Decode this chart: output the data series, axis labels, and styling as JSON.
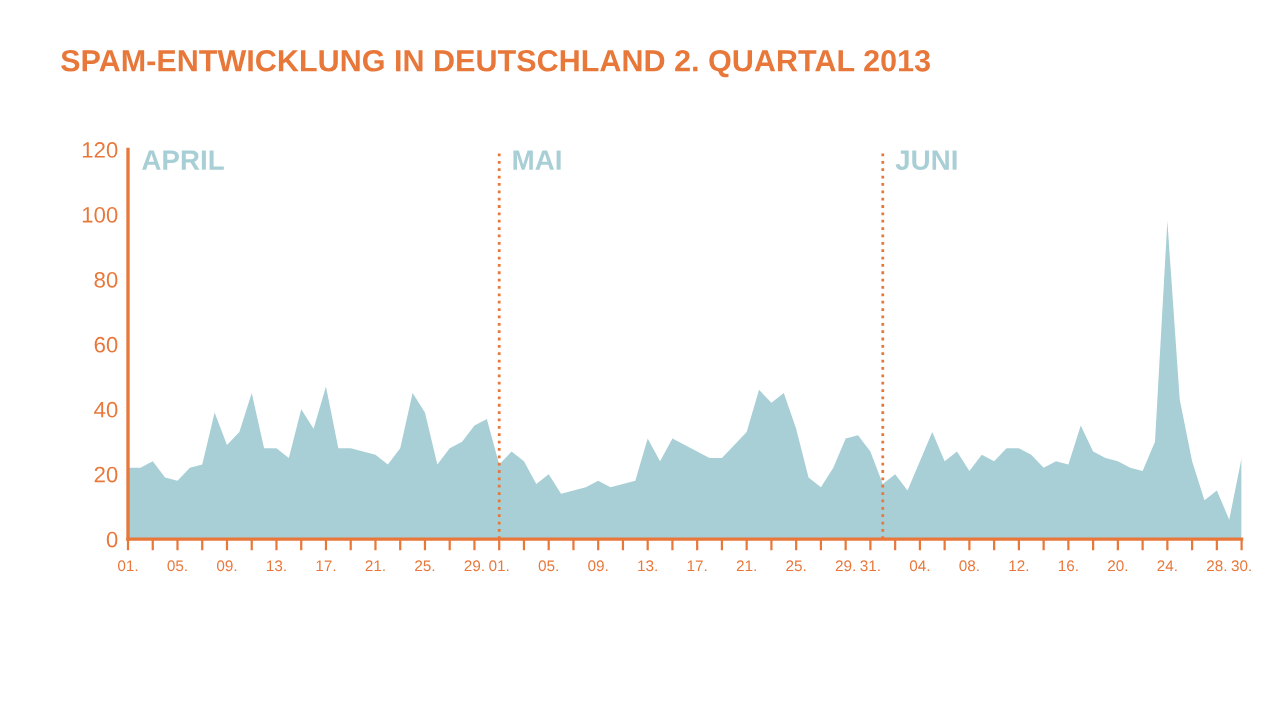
{
  "chart_data": {
    "type": "area",
    "title": "SPAM-ENTWICKLUNG IN DEUTSCHLAND 2. QUARTAL 2013",
    "x": [
      "2013-04-01",
      "2013-04-02",
      "2013-04-03",
      "2013-04-04",
      "2013-04-05",
      "2013-04-06",
      "2013-04-07",
      "2013-04-08",
      "2013-04-09",
      "2013-04-10",
      "2013-04-11",
      "2013-04-12",
      "2013-04-13",
      "2013-04-14",
      "2013-04-15",
      "2013-04-16",
      "2013-04-17",
      "2013-04-18",
      "2013-04-19",
      "2013-04-20",
      "2013-04-21",
      "2013-04-22",
      "2013-04-23",
      "2013-04-24",
      "2013-04-25",
      "2013-04-26",
      "2013-04-27",
      "2013-04-28",
      "2013-04-29",
      "2013-04-30",
      "2013-05-01",
      "2013-05-02",
      "2013-05-03",
      "2013-05-04",
      "2013-05-05",
      "2013-05-06",
      "2013-05-07",
      "2013-05-08",
      "2013-05-09",
      "2013-05-10",
      "2013-05-11",
      "2013-05-12",
      "2013-05-13",
      "2013-05-14",
      "2013-05-15",
      "2013-05-16",
      "2013-05-17",
      "2013-05-18",
      "2013-05-19",
      "2013-05-20",
      "2013-05-21",
      "2013-05-22",
      "2013-05-23",
      "2013-05-24",
      "2013-05-25",
      "2013-05-26",
      "2013-05-27",
      "2013-05-28",
      "2013-05-29",
      "2013-05-30",
      "2013-05-31",
      "2013-06-01",
      "2013-06-02",
      "2013-06-03",
      "2013-06-04",
      "2013-06-05",
      "2013-06-06",
      "2013-06-07",
      "2013-06-08",
      "2013-06-09",
      "2013-06-10",
      "2013-06-11",
      "2013-06-12",
      "2013-06-13",
      "2013-06-14",
      "2013-06-15",
      "2013-06-16",
      "2013-06-17",
      "2013-06-18",
      "2013-06-19",
      "2013-06-20",
      "2013-06-21",
      "2013-06-22",
      "2013-06-23",
      "2013-06-24",
      "2013-06-25",
      "2013-06-26",
      "2013-06-27",
      "2013-06-28",
      "2013-06-29",
      "2013-06-30"
    ],
    "series": [
      {
        "color": "#a9cfd6",
        "values": [
          22,
          22,
          24,
          19,
          18,
          22,
          23,
          39,
          29,
          33,
          45,
          28,
          28,
          25,
          40,
          34,
          47,
          28,
          28,
          27,
          26,
          23,
          28,
          45,
          39,
          23,
          28,
          30,
          35,
          37,
          23,
          27,
          24,
          17,
          20,
          14,
          15,
          16,
          18,
          16,
          17,
          18,
          31,
          24,
          31,
          29,
          27,
          25,
          25,
          29,
          33,
          46,
          42,
          45,
          34,
          19,
          16,
          22,
          31,
          32,
          27,
          17,
          20,
          15,
          24,
          33,
          24,
          27,
          21,
          26,
          24,
          28,
          28,
          26,
          22,
          24,
          23,
          35,
          27,
          25,
          24,
          22,
          21,
          30,
          98,
          43,
          24,
          12,
          15,
          6,
          25
        ]
      }
    ],
    "ylim": [
      0,
      120
    ],
    "yticks": [
      0,
      20,
      40,
      60,
      80,
      100,
      120
    ],
    "xlim": [
      "2013-04-01",
      "2013-06-30"
    ],
    "xticks": [
      {
        "value": "2013-04-01",
        "label": "01."
      },
      {
        "value": "2013-04-03",
        "label": null
      },
      {
        "value": "2013-04-05",
        "label": "05."
      },
      {
        "value": "2013-04-07",
        "label": null
      },
      {
        "value": "2013-04-09",
        "label": "09."
      },
      {
        "value": "2013-04-11",
        "label": null
      },
      {
        "value": "2013-04-13",
        "label": "13."
      },
      {
        "value": "2013-04-15",
        "label": null
      },
      {
        "value": "2013-04-17",
        "label": "17."
      },
      {
        "value": "2013-04-19",
        "label": null
      },
      {
        "value": "2013-04-21",
        "label": "21."
      },
      {
        "value": "2013-04-23",
        "label": null
      },
      {
        "value": "2013-04-25",
        "label": "25."
      },
      {
        "value": "2013-04-27",
        "label": null
      },
      {
        "value": "2013-04-29",
        "label": "29."
      },
      {
        "value": "2013-05-01",
        "label": "01."
      },
      {
        "value": "2013-05-03",
        "label": null
      },
      {
        "value": "2013-05-05",
        "label": "05."
      },
      {
        "value": "2013-05-07",
        "label": null
      },
      {
        "value": "2013-05-09",
        "label": "09."
      },
      {
        "value": "2013-05-11",
        "label": null
      },
      {
        "value": "2013-05-13",
        "label": "13."
      },
      {
        "value": "2013-05-15",
        "label": null
      },
      {
        "value": "2013-05-17",
        "label": "17."
      },
      {
        "value": "2013-05-19",
        "label": null
      },
      {
        "value": "2013-05-21",
        "label": "21."
      },
      {
        "value": "2013-05-23",
        "label": null
      },
      {
        "value": "2013-05-25",
        "label": "25."
      },
      {
        "value": "2013-05-27",
        "label": null
      },
      {
        "value": "2013-05-29",
        "label": "29."
      },
      {
        "value": "2013-05-31",
        "label": "31."
      },
      {
        "value": "2013-06-02",
        "label": null
      },
      {
        "value": "2013-06-04",
        "label": "04."
      },
      {
        "value": "2013-06-06",
        "label": null
      },
      {
        "value": "2013-06-08",
        "label": "08."
      },
      {
        "value": "2013-06-10",
        "label": null
      },
      {
        "value": "2013-06-12",
        "label": "12."
      },
      {
        "value": "2013-06-14",
        "label": null
      },
      {
        "value": "2013-06-16",
        "label": "16."
      },
      {
        "value": "2013-06-18",
        "label": null
      },
      {
        "value": "2013-06-20",
        "label": "20."
      },
      {
        "value": "2013-06-22",
        "label": null
      },
      {
        "value": "2013-06-24",
        "label": "24."
      },
      {
        "value": "2013-06-26",
        "label": null
      },
      {
        "value": "2013-06-28",
        "label": "28."
      },
      {
        "value": "2013-06-30",
        "label": "30."
      }
    ],
    "ref_lines": [
      {
        "axis": "x",
        "value": "2013-05-01",
        "label": "MAI",
        "color": "#e8773a",
        "line_style": "dotted"
      },
      {
        "axis": "x",
        "value": "2013-06-01",
        "label": "JUNI",
        "color": "#e8773a",
        "line_style": "dotted"
      }
    ],
    "annotations": [
      "APRIL"
    ],
    "grid": false,
    "legend": false
  }
}
